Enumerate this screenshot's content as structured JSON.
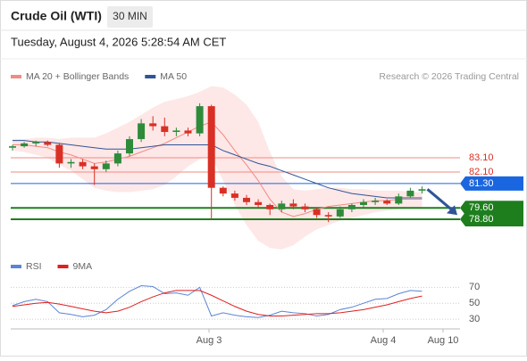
{
  "header": {
    "title": "Crude Oil (WTI)",
    "timeframe": "30 MIN",
    "datetime": "Tuesday, August 4, 2026 5:28:54 AM CET",
    "copyright": "Research © 2026 Trading Central"
  },
  "chart_data": [
    {
      "type": "candlestick",
      "legend": [
        {
          "name": "MA 20 + Bollinger Bands",
          "color": "#f28b82"
        },
        {
          "name": "MA 50",
          "color": "#2f5597"
        }
      ],
      "up_color": "#2e8b3a",
      "down_color": "#d93025",
      "open": [
        83.8,
        83.9,
        84.1,
        84.2,
        84.0,
        82.7,
        82.8,
        82.5,
        82.3,
        82.7,
        83.4,
        84.4,
        85.5,
        85.3,
        84.9,
        85.0,
        84.8,
        86.7,
        81.0,
        80.6,
        80.3,
        80.0,
        79.8,
        79.5,
        79.9,
        79.7,
        79.5,
        79.1,
        79.0,
        79.5,
        79.8,
        80.0,
        80.1,
        79.9,
        80.4,
        80.8
      ],
      "high": [
        84.0,
        84.2,
        84.3,
        84.3,
        84.1,
        83.0,
        83.0,
        82.7,
        82.9,
        83.6,
        84.6,
        85.8,
        86.0,
        85.9,
        85.2,
        85.2,
        86.9,
        86.8,
        81.1,
        80.8,
        80.5,
        80.2,
        79.9,
        80.1,
        80.2,
        79.9,
        79.6,
        79.3,
        79.7,
        79.9,
        80.2,
        80.3,
        80.2,
        80.6,
        81.0,
        81.1
      ],
      "low": [
        83.6,
        83.8,
        83.9,
        83.9,
        82.4,
        82.4,
        82.3,
        81.2,
        82.1,
        82.5,
        83.2,
        84.2,
        85.0,
        84.6,
        84.6,
        84.6,
        84.6,
        78.8,
        80.4,
        80.1,
        79.8,
        79.6,
        79.1,
        79.3,
        79.5,
        79.3,
        78.9,
        78.6,
        78.9,
        79.3,
        79.6,
        79.8,
        79.8,
        79.8,
        80.3,
        80.6
      ],
      "close": [
        83.9,
        84.1,
        84.2,
        84.0,
        82.7,
        82.8,
        82.5,
        82.3,
        82.7,
        83.4,
        84.4,
        85.5,
        85.3,
        84.9,
        85.0,
        84.8,
        86.7,
        81.0,
        80.6,
        80.3,
        80.0,
        79.8,
        79.5,
        79.9,
        79.7,
        79.5,
        79.1,
        79.0,
        79.5,
        79.8,
        80.0,
        80.1,
        79.9,
        80.4,
        80.8,
        80.9
      ],
      "bb_upper": [
        84.4,
        84.4,
        84.5,
        84.5,
        84.4,
        84.5,
        84.5,
        84.5,
        84.8,
        85.2,
        85.6,
        86.1,
        86.6,
        87.0,
        87.2,
        87.4,
        87.7,
        88.1,
        88.0,
        87.5,
        86.8,
        85.6,
        83.5,
        81.8,
        80.9,
        80.8,
        80.9,
        81.0,
        81.0,
        80.9,
        80.9,
        80.8,
        80.8,
        80.8,
        80.7,
        80.7
      ],
      "bb_lower": [
        83.6,
        83.5,
        83.3,
        83.1,
        82.6,
        82.2,
        81.6,
        81.0,
        80.8,
        80.7,
        80.7,
        80.8,
        80.9,
        81.2,
        81.8,
        82.5,
        83.0,
        83.2,
        81.5,
        79.8,
        78.4,
        77.3,
        76.8,
        76.7,
        77.0,
        77.6,
        78.1,
        78.4,
        78.7,
        78.9,
        79.1,
        79.3,
        79.4,
        79.5,
        79.6,
        79.6
      ],
      "ma20": [
        84.0,
        84.0,
        83.9,
        83.8,
        83.5,
        83.3,
        83.0,
        82.7,
        82.8,
        83.0,
        83.2,
        83.5,
        83.8,
        84.1,
        84.5,
        84.9,
        85.3,
        85.6,
        84.7,
        83.6,
        82.6,
        81.5,
        80.2,
        79.3,
        79.0,
        79.2,
        79.5,
        79.7,
        79.8,
        79.9,
        80.0,
        80.1,
        80.1,
        80.2,
        80.2,
        80.2
      ],
      "ma50": [
        84.3,
        84.3,
        84.2,
        84.2,
        84.1,
        84.0,
        83.9,
        83.8,
        83.7,
        83.7,
        83.7,
        83.8,
        83.9,
        84.0,
        84.0,
        84.0,
        84.0,
        84.0,
        83.6,
        83.3,
        83.0,
        82.7,
        82.5,
        82.2,
        81.9,
        81.6,
        81.3,
        81.0,
        80.8,
        80.6,
        80.5,
        80.4,
        80.3,
        80.3,
        80.3,
        80.3
      ],
      "levels": [
        {
          "value": 83.1,
          "label": "83.10",
          "color": "#f28b82",
          "boxed": false
        },
        {
          "value": 82.1,
          "label": "82.10",
          "color": "#f28b82",
          "boxed": false
        },
        {
          "value": 81.3,
          "label": "81.30",
          "color": "#1a66e0",
          "boxed": true
        },
        {
          "value": 79.6,
          "label": "79.60",
          "color": "#1e7e1e",
          "boxed": true
        },
        {
          "value": 78.8,
          "label": "78.80",
          "color": "#1e7e1e",
          "boxed": true
        }
      ],
      "ylim": [
        76.5,
        88.2
      ],
      "xtick_labels": [
        "Aug 3",
        "Aug 4",
        "Aug 10"
      ]
    },
    {
      "type": "line",
      "series": [
        {
          "name": "RSI",
          "color": "#5b84d6",
          "values": [
            47,
            52,
            55,
            52,
            38,
            36,
            33,
            35,
            42,
            55,
            65,
            72,
            71,
            62,
            63,
            60,
            70,
            34,
            38,
            35,
            33,
            32,
            35,
            40,
            38,
            37,
            34,
            36,
            42,
            45,
            50,
            55,
            56,
            62,
            66,
            65
          ]
        },
        {
          "name": "9MA",
          "color": "#e01f1f",
          "values": [
            46,
            48,
            50,
            51,
            49,
            46,
            43,
            40,
            38,
            40,
            45,
            52,
            58,
            63,
            66,
            66,
            66,
            60,
            53,
            46,
            40,
            36,
            34,
            34,
            35,
            36,
            37,
            37,
            38,
            40,
            42,
            45,
            48,
            52,
            56,
            59
          ]
        }
      ],
      "ylim": [
        20,
        95
      ],
      "yticks": [
        70,
        50,
        30
      ]
    }
  ]
}
